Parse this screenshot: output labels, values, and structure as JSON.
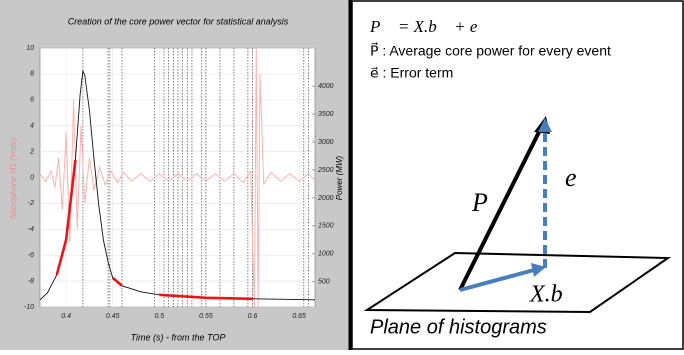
{
  "chart_data": {
    "type": "line",
    "title": "Creation of the core power vector for statistical analysis",
    "x_label": "Time (s) - from the TOP",
    "y_label": "Microphone M1 (Volts)",
    "y2_label": "Power (MW)",
    "xlim": [
      0.372,
      0.667
    ],
    "xticks": [
      0.4,
      0.45,
      0.5,
      0.55,
      0.6,
      0.65
    ],
    "ylim": [
      -10,
      10
    ],
    "yticks": [
      -10,
      -8,
      -6,
      -4,
      -2,
      0,
      2,
      4,
      6,
      8,
      10
    ],
    "y2lim": [
      50,
      4680
    ],
    "y2ticks": [
      500,
      1000,
      1500,
      2000,
      2500,
      3000,
      3500,
      4000
    ],
    "grid": true,
    "event_lines": [
      0.418,
      0.445,
      0.447,
      0.46,
      0.495,
      0.505,
      0.51,
      0.515,
      0.52,
      0.525,
      0.53,
      0.535,
      0.545,
      0.55,
      0.565,
      0.58,
      0.595,
      0.6,
      0.655,
      0.66
    ],
    "series": [
      {
        "color": "#f8b4b4",
        "x": [
          0.372,
          0.378,
          0.384,
          0.388,
          0.392,
          0.396,
          0.4,
          0.404,
          0.408,
          0.412,
          0.416,
          0.42,
          0.425,
          0.43,
          0.436,
          0.442,
          0.448,
          0.455,
          0.462,
          0.47,
          0.48,
          0.49,
          0.5,
          0.51,
          0.52,
          0.53,
          0.54,
          0.55,
          0.56,
          0.57,
          0.58,
          0.59,
          0.598,
          0.602,
          0.604,
          0.606,
          0.608,
          0.612,
          0.62,
          0.63,
          0.64,
          0.65,
          0.66,
          0.667
        ],
        "values": [
          0.3,
          -0.3,
          0.5,
          -0.8,
          1.5,
          -2.5,
          3.5,
          -5,
          6,
          -4,
          4,
          -2,
          1.5,
          -1,
          0.8,
          -0.6,
          0.5,
          -0.4,
          0.4,
          -0.3,
          0.3,
          -0.3,
          0.3,
          -0.3,
          0.3,
          -0.3,
          0.3,
          -0.3,
          0.3,
          -0.3,
          0.3,
          -0.4,
          0.5,
          -10,
          10,
          -10,
          8,
          -0.5,
          0.4,
          -0.3,
          0.3,
          -0.3,
          0.3,
          -0.2
        ]
      },
      {
        "color": "#111111",
        "axis": "y2",
        "x": [
          0.372,
          0.38,
          0.39,
          0.4,
          0.41,
          0.415,
          0.418,
          0.42,
          0.425,
          0.43,
          0.435,
          0.44,
          0.445,
          0.45,
          0.46,
          0.48,
          0.5,
          0.55,
          0.6,
          0.667
        ],
        "values": [
          179,
          304,
          625,
          1250,
          2679,
          3839,
          4268,
          4196,
          3571,
          2679,
          1875,
          1250,
          857,
          571,
          429,
          321,
          268,
          214,
          196,
          179
        ]
      },
      {
        "color": "#e8161b",
        "axis": "y2",
        "x": [
          0.372,
          0.38,
          0.39,
          0.4,
          0.41,
          0.415,
          0.418,
          0.42,
          0.425,
          0.43,
          0.435,
          0.44,
          0.445,
          0.45,
          0.46,
          0.48,
          0.5,
          0.55,
          0.6,
          0.667
        ],
        "values": [
          null,
          null,
          625,
          1250,
          2679,
          null,
          null,
          null,
          null,
          null,
          null,
          null,
          null,
          571,
          429,
          null,
          268,
          214,
          196,
          null
        ]
      }
    ]
  },
  "diagram": {
    "equation": "P⃗ = X.b⃗ + e⃗",
    "legend_lines": [
      "P⃗ : Average core power for every event",
      "e⃗ : Error term"
    ],
    "vector_p": "P⃗",
    "vector_e": "e⃗",
    "vector_xb": "X.b⃗",
    "plane_label": "Plane of histograms"
  }
}
